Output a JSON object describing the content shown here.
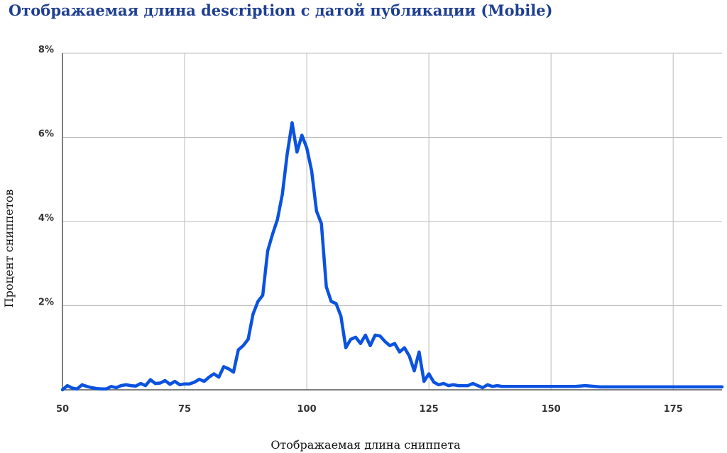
{
  "title": "Отображаемая длина description с датой публикации (Mobile)",
  "chart_data": {
    "type": "line",
    "title": "Отображаемая длина description с датой публикации (Mobile)",
    "xlabel": "Отображаемая длина сниппета",
    "ylabel": "Процент сниппетов",
    "xlim": [
      50,
      185
    ],
    "ylim": [
      0,
      8
    ],
    "x_ticks": [
      50,
      75,
      100,
      125,
      150,
      175
    ],
    "x_tick_labels": [
      "50",
      "75",
      "100",
      "125",
      "150",
      "175"
    ],
    "y_ticks": [
      2,
      4,
      6,
      8
    ],
    "y_tick_labels": [
      "2%",
      "4%",
      "6%",
      "8%"
    ],
    "grid": true,
    "series_color": "#0a52e0",
    "series": [
      {
        "x": [
          50,
          51,
          52,
          53,
          54,
          55,
          56,
          57,
          58,
          59,
          60,
          61,
          62,
          63,
          64,
          65,
          66,
          67,
          68,
          69,
          70,
          71,
          72,
          73,
          74,
          75,
          76,
          77,
          78,
          79,
          80,
          81,
          82,
          83,
          84,
          85,
          86,
          87,
          88,
          89,
          90,
          91,
          92,
          93,
          94,
          95,
          96,
          97,
          98,
          99,
          100,
          101,
          102,
          103,
          104,
          105,
          106,
          107,
          108,
          109,
          110,
          111,
          112,
          113,
          114,
          115,
          116,
          117,
          118,
          119,
          120,
          121,
          122,
          123,
          124,
          125,
          126,
          127,
          128,
          129,
          130,
          131,
          132,
          133,
          134,
          135,
          136,
          137,
          138,
          139,
          140,
          141,
          142,
          145,
          150,
          155,
          157,
          160,
          165,
          170,
          175,
          180,
          185
        ],
        "y": [
          0.0,
          0.1,
          0.04,
          0.02,
          0.12,
          0.08,
          0.05,
          0.03,
          0.02,
          0.02,
          0.08,
          0.05,
          0.1,
          0.12,
          0.1,
          0.09,
          0.15,
          0.1,
          0.24,
          0.15,
          0.16,
          0.22,
          0.13,
          0.2,
          0.12,
          0.14,
          0.14,
          0.18,
          0.25,
          0.2,
          0.3,
          0.38,
          0.3,
          0.55,
          0.5,
          0.42,
          0.95,
          1.05,
          1.2,
          1.8,
          2.1,
          2.25,
          3.3,
          3.7,
          4.05,
          4.65,
          5.6,
          6.35,
          5.65,
          6.05,
          5.75,
          5.2,
          4.25,
          3.95,
          2.45,
          2.1,
          2.05,
          1.75,
          1.0,
          1.2,
          1.25,
          1.1,
          1.3,
          1.05,
          1.3,
          1.28,
          1.15,
          1.05,
          1.1,
          0.9,
          1.0,
          0.8,
          0.45,
          0.9,
          0.2,
          0.38,
          0.18,
          0.12,
          0.15,
          0.1,
          0.12,
          0.1,
          0.1,
          0.1,
          0.15,
          0.1,
          0.05,
          0.12,
          0.08,
          0.1,
          0.08,
          0.08,
          0.08,
          0.08,
          0.08,
          0.08,
          0.1,
          0.07,
          0.07,
          0.07,
          0.07,
          0.07,
          0.07
        ]
      }
    ]
  }
}
